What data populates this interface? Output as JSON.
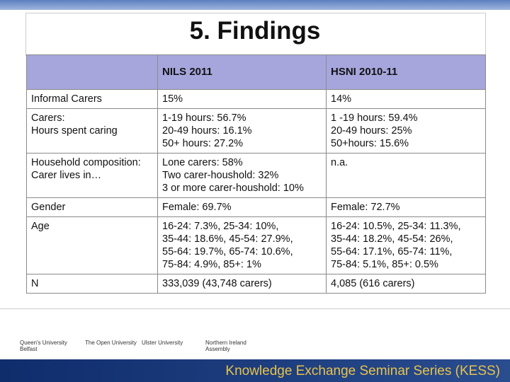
{
  "header": {
    "title": "5. Findings"
  },
  "table": {
    "columns": [
      "NILS 2011",
      "HSNI 2010-11"
    ],
    "rows": [
      [
        [
          "Informal Carers"
        ],
        [
          "15%"
        ],
        [
          "14%"
        ]
      ],
      [
        [
          "Carers:",
          "Hours spent caring"
        ],
        [
          "1-19 hours: 56.7%",
          "20-49 hours: 16.1%",
          "50+ hours: 27.2%"
        ],
        [
          "1 -19 hours: 59.4%",
          "20-49 hours: 25%",
          "50+hours: 15.6%"
        ]
      ],
      [
        [
          "Household composition:",
          "Carer lives in…"
        ],
        [
          "Lone carers: 58%",
          "Two carer-houshold: 32%",
          "3 or more carer-houshold: 10%"
        ],
        [
          "n.a."
        ]
      ],
      [
        [
          "Gender"
        ],
        [
          "Female: 69.7%"
        ],
        [
          "Female: 72.7%"
        ]
      ],
      [
        [
          "Age"
        ],
        [
          "16-24: 7.3%, 25-34: 10%,",
          "35-44: 18.6%, 45-54: 27.9%,",
          "55-64: 19.7%, 65-74: 10.6%,",
          "75-84: 4.9%, 85+: 1%"
        ],
        [
          "16-24: 10.5%, 25-34: 11.3%,",
          "35-44: 18.2%, 45-54: 26%,",
          "55-64: 17.1%, 65-74: 11%,",
          "75-84: 5.1%, 85+: 0.5%"
        ]
      ],
      [
        [
          "N"
        ],
        [
          "333,039 (43,748 carers)"
        ],
        [
          "4,085 (616 carers)"
        ]
      ]
    ]
  },
  "logos": [
    "Queen's University Belfast",
    "The Open University",
    "Ulster University",
    "Northern Ireland Assembly"
  ],
  "footer": {
    "text": "Knowledge Exchange Seminar Series (KESS)"
  }
}
